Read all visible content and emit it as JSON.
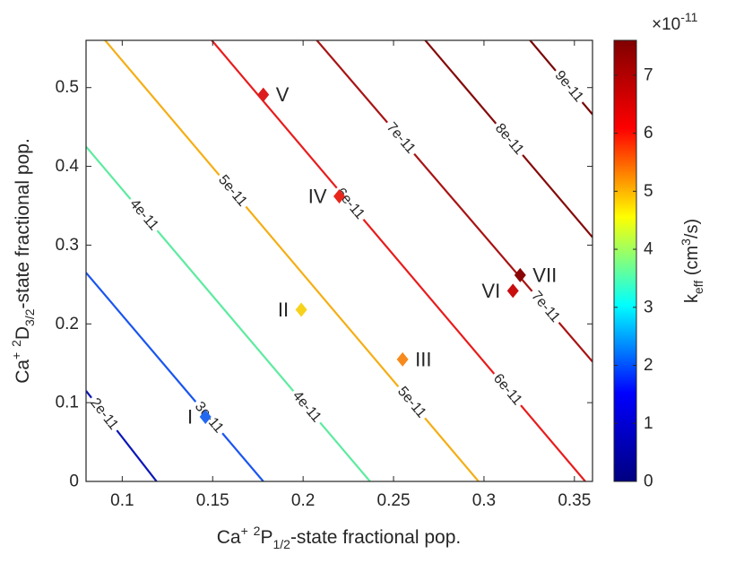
{
  "chart_data": {
    "type": "contour",
    "xlabel_parts": [
      "Ca",
      "+",
      " ",
      "2",
      "P",
      "1/2",
      "-state fractional pop."
    ],
    "ylabel_parts": [
      "Ca",
      "+",
      " ",
      "2",
      "D",
      "3/2",
      "-state fractional pop."
    ],
    "xlim": [
      0.08,
      0.36
    ],
    "ylim": [
      0,
      0.56
    ],
    "xticks": [
      0.1,
      0.15,
      0.2,
      0.25,
      0.3,
      0.35
    ],
    "xtick_labels": [
      "0.1",
      "0.15",
      "0.2",
      "0.25",
      "0.3",
      "0.35"
    ],
    "yticks": [
      0,
      0.1,
      0.2,
      0.3,
      0.4,
      0.5
    ],
    "ytick_labels": [
      "0",
      "0.1",
      "0.2",
      "0.3",
      "0.4",
      "0.5"
    ],
    "contours": [
      {
        "level": "2e-11",
        "value": 2,
        "color": "#0a16b8",
        "x1": 0.08,
        "y1": 0.115,
        "x2": 0.119,
        "y2": 0,
        "labels": [
          {
            "text": "2e-11",
            "x": 0.09
          }
        ]
      },
      {
        "level": "3e-11",
        "value": 3,
        "color": "#1a55f0",
        "x1": 0.08,
        "y1": 0.265,
        "x2": 0.178,
        "y2": 0,
        "labels": [
          {
            "text": "3e-11",
            "x": 0.148
          }
        ]
      },
      {
        "level": "4e-11",
        "value": 4,
        "color": "#5deba0",
        "x1": 0.08,
        "y1": 0.425,
        "x2": 0.237,
        "y2": 0,
        "labels": [
          {
            "text": "4e-11",
            "x": 0.112
          },
          {
            "text": "4e-11",
            "x": 0.202
          }
        ]
      },
      {
        "level": "5e-11",
        "value": 5,
        "color": "#f5ae14",
        "x1": 0.085,
        "y1": 0.575,
        "x2": 0.297,
        "y2": 0,
        "labels": [
          {
            "text": "5e-11",
            "x": 0.161
          },
          {
            "text": "5e-11",
            "x": 0.26
          }
        ]
      },
      {
        "level": "6e-11",
        "value": 6,
        "color": "#e81c1c",
        "x1": 0.144,
        "y1": 0.575,
        "x2": 0.356,
        "y2": 0,
        "labels": [
          {
            "text": "6e-11",
            "x": 0.226
          },
          {
            "text": "6e-11",
            "x": 0.313
          }
        ]
      },
      {
        "level": "7e-11",
        "value": 7,
        "color": "#a81313",
        "x1": 0.202,
        "y1": 0.575,
        "x2": 0.36,
        "y2": 0.152,
        "labels": [
          {
            "text": "7e-11",
            "x": 0.254
          },
          {
            "text": "7e-11",
            "x": 0.334
          }
        ]
      },
      {
        "level": "8e-11",
        "value": 8,
        "color": "#850a0a",
        "x1": 0.262,
        "y1": 0.575,
        "x2": 0.36,
        "y2": 0.31,
        "labels": [
          {
            "text": "8e-11",
            "x": 0.314
          }
        ]
      },
      {
        "level": "9e-11",
        "value": 9,
        "color": "#7a0505",
        "x1": 0.32,
        "y1": 0.575,
        "x2": 0.36,
        "y2": 0.466,
        "labels": [
          {
            "text": "9e-11",
            "x": 0.347
          }
        ]
      }
    ],
    "points": [
      {
        "label": "I",
        "x": 0.146,
        "y": 0.082,
        "color": "#2368f0",
        "label_side": "left"
      },
      {
        "label": "II",
        "x": 0.199,
        "y": 0.218,
        "color": "#f7d21c",
        "label_side": "left"
      },
      {
        "label": "III",
        "x": 0.255,
        "y": 0.155,
        "color": "#f78a1c",
        "label_side": "right"
      },
      {
        "label": "IV",
        "x": 0.22,
        "y": 0.362,
        "color": "#e8261c",
        "label_side": "left"
      },
      {
        "label": "V",
        "x": 0.178,
        "y": 0.491,
        "color": "#dc1c1c",
        "label_side": "right"
      },
      {
        "label": "VI",
        "x": 0.316,
        "y": 0.242,
        "color": "#c80e0e",
        "label_side": "left"
      },
      {
        "label": "VII",
        "x": 0.32,
        "y": 0.262,
        "color": "#8a0606",
        "label_side": "right"
      }
    ],
    "colorbar": {
      "min": 0,
      "max": 7.6,
      "ticks": [
        0,
        1,
        2,
        3,
        4,
        5,
        6,
        7
      ],
      "tick_labels": [
        "0",
        "1",
        "2",
        "3",
        "4",
        "5",
        "6",
        "7"
      ],
      "exponent_base": "×10",
      "exponent_power": "-11",
      "label_parts": [
        "k",
        "eff",
        " (cm",
        "3",
        "/s)"
      ],
      "colormap": [
        "#000080",
        "#0000ff",
        "#00ffff",
        "#ffff00",
        "#ff0000",
        "#800000"
      ]
    }
  }
}
